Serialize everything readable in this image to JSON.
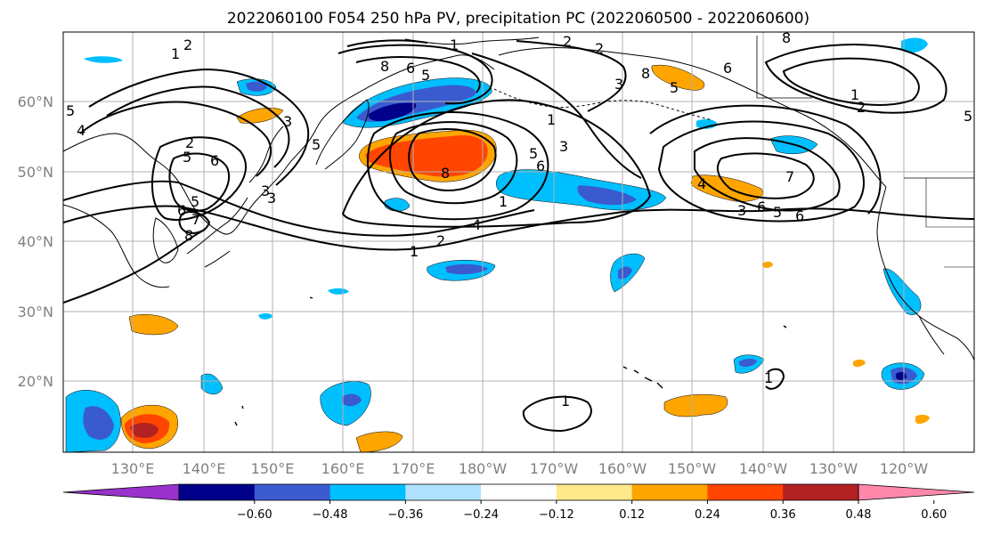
{
  "title": "2022060100 F054 250 hPa PV, precipitation PC (2022060500 - 2022060600)",
  "lat_ticks": [
    "60°N",
    "50°N",
    "40°N",
    "30°N",
    "20°N"
  ],
  "lon_ticks": [
    "130°E",
    "140°E",
    "150°E",
    "160°E",
    "170°E",
    "180°W",
    "170°W",
    "160°W",
    "150°W",
    "140°W",
    "130°W",
    "120°W"
  ],
  "colorbar": {
    "ticks": [
      "−0.60",
      "−0.48",
      "−0.36",
      "−0.24",
      "−0.12",
      "0.12",
      "0.24",
      "0.36",
      "0.48",
      "0.60"
    ],
    "colors": [
      "#9932cc",
      "#00008b",
      "#3a5bcf",
      "#00bfff",
      "#b0e2ff",
      "#ffffff",
      "#ffe98a",
      "#ffa500",
      "#ff4500",
      "#b22222",
      "#ff88aa"
    ]
  },
  "contour_labels": [
    "1",
    "2",
    "2",
    "1",
    "2",
    "3",
    "4",
    "5",
    "6",
    "8",
    "5",
    "3",
    "5",
    "6",
    "2",
    "5",
    "5",
    "6",
    "7",
    "8",
    "3",
    "8",
    "6",
    "5",
    "8",
    "6",
    "5",
    "3",
    "1",
    "2",
    "4",
    "1",
    "6",
    "7",
    "4",
    "3",
    "5",
    "6",
    "8",
    "1",
    "2",
    "5",
    "1",
    "1",
    "1",
    "3"
  ],
  "colors": {
    "land_line": "#000000",
    "grid": "#b0b0b0",
    "contour": "#000000"
  }
}
